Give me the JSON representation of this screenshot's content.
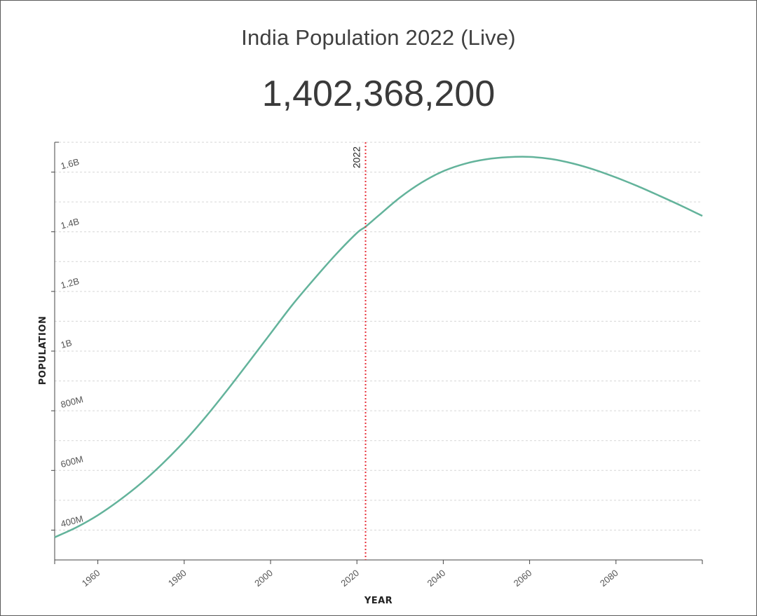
{
  "title": "India Population 2022 (Live)",
  "live_count": "1,402,368,200",
  "colors": {
    "line": "#63b39b",
    "marker": "#e8303a",
    "grid": "#d6d6d6",
    "axis": "#444444"
  },
  "chart_data": {
    "type": "line",
    "xlabel": "YEAR",
    "ylabel": "POPULATION",
    "xlim": [
      1950,
      2100
    ],
    "ylim": [
      300000000,
      1700000000
    ],
    "x_ticks": [
      1960,
      1980,
      2000,
      2020,
      2040,
      2060,
      2080
    ],
    "x_tick_labels": [
      "1960",
      "1980",
      "2000",
      "2020",
      "2040",
      "2060",
      "2080"
    ],
    "y_ticks": [
      400000000,
      600000000,
      800000000,
      1000000000,
      1200000000,
      1400000000,
      1600000000
    ],
    "y_tick_labels": [
      "400M",
      "600M",
      "800M",
      "1B",
      "1.2B",
      "1.4B",
      "1.6B"
    ],
    "grid": true,
    "marker": {
      "x": 2022,
      "label": "2022"
    },
    "series": [
      {
        "x": [
          1950,
          1955,
          1960,
          1965,
          1970,
          1975,
          1980,
          1985,
          1990,
          1995,
          2000,
          2005,
          2010,
          2015,
          2020,
          2022,
          2025,
          2030,
          2035,
          2040,
          2045,
          2050,
          2055,
          2060,
          2065,
          2070,
          2075,
          2080,
          2085,
          2090,
          2095,
          2100
        ],
        "y": [
          376000000,
          409000000,
          450000000,
          500000000,
          557000000,
          623000000,
          697000000,
          780000000,
          870000000,
          964000000,
          1059000000,
          1154000000,
          1240000000,
          1322000000,
          1396000000,
          1417000000,
          1454000000,
          1515000000,
          1565000000,
          1603000000,
          1628000000,
          1643000000,
          1650000000,
          1651000000,
          1644000000,
          1629000000,
          1608000000,
          1582000000,
          1553000000,
          1521000000,
          1488000000,
          1453000000
        ]
      }
    ]
  }
}
